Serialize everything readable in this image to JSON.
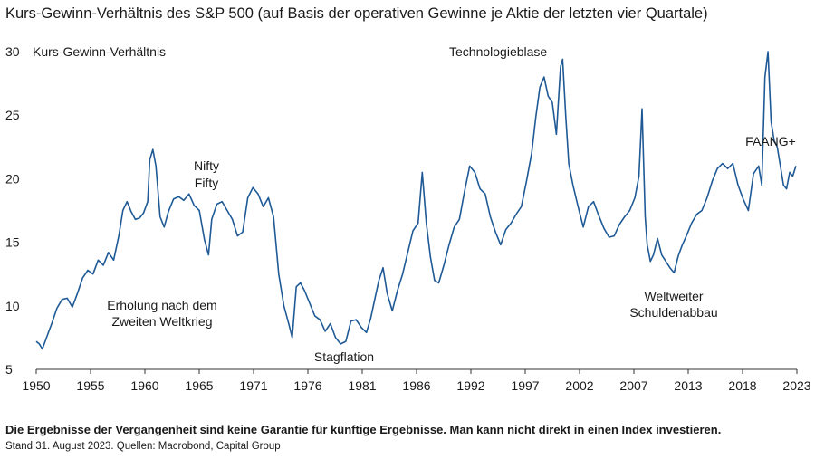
{
  "title": "Kurs-Gewinn-Verhältnis des S&P 500 (auf Basis der operativen Gewinne je Aktie der letzten vier Quartale)",
  "footnote": "Die Ergebnisse der Vergangenheit sind keine Garantie für künftige Ergebnisse. Man kann nicht direkt in einen Index investieren.",
  "source": "Stand 31. August 2023. Quellen: Macrobond, Capital Group",
  "colors": {
    "line": "#1f5a96",
    "axis": "#333333",
    "text": "#1a1a1a"
  },
  "chart_data": {
    "type": "line",
    "title": "Kurs-Gewinn-Verhältnis des S&P 500 (auf Basis der operativen Gewinne je Aktie der letzten vier Quartale)",
    "ylabel": "Kurs-Gewinn-Verhältnis",
    "xlabel": "",
    "ylim": [
      5,
      30
    ],
    "xlim": [
      1950,
      2023.7
    ],
    "yticks": [
      5,
      10,
      15,
      20,
      25,
      30
    ],
    "xtick_labels": [
      "1950",
      "1955",
      "1960",
      "1965",
      "1971",
      "1976",
      "1981",
      "1986",
      "1992",
      "1997",
      "2002",
      "2007",
      "2013",
      "2018",
      "2023"
    ],
    "grid": false,
    "legend": "none",
    "annotations": [
      {
        "text": "Technologieblase"
      },
      {
        "text": "Nifty"
      },
      {
        "text": "Fifty"
      },
      {
        "text": "FAANG+"
      },
      {
        "text": "Erholung nach dem"
      },
      {
        "text": "Zweiten Weltkrieg"
      },
      {
        "text": "Stagflation"
      },
      {
        "text": "Weltweiter"
      },
      {
        "text": "Schuldenabbau"
      }
    ],
    "series": [
      {
        "x": [
          1950.0,
          1950.3,
          1950.6,
          1951.0,
          1951.5,
          1952.0,
          1952.5,
          1953.0,
          1953.5,
          1954.0,
          1954.5,
          1955.0,
          1955.5,
          1956.0,
          1956.5,
          1957.0,
          1957.5,
          1958.0,
          1958.4,
          1958.8,
          1959.2,
          1959.6,
          1960.0,
          1960.4,
          1960.8,
          1961.0,
          1961.3,
          1961.6,
          1962.0,
          1962.4,
          1962.8,
          1963.3,
          1963.8,
          1964.3,
          1964.8,
          1965.3,
          1965.8,
          1966.3,
          1966.7,
          1967.0,
          1967.5,
          1968.0,
          1968.5,
          1969.0,
          1969.5,
          1970.0,
          1970.5,
          1971.0,
          1971.5,
          1972.0,
          1972.5,
          1973.0,
          1973.5,
          1974.0,
          1974.5,
          1974.8,
          1975.2,
          1975.6,
          1976.0,
          1976.5,
          1977.0,
          1977.5,
          1978.0,
          1978.5,
          1979.0,
          1979.5,
          1980.0,
          1980.5,
          1981.0,
          1981.5,
          1982.0,
          1982.4,
          1982.8,
          1983.2,
          1983.6,
          1984.0,
          1984.5,
          1985.0,
          1985.5,
          1986.0,
          1986.5,
          1987.0,
          1987.4,
          1987.8,
          1988.2,
          1988.6,
          1989.0,
          1989.5,
          1990.0,
          1990.5,
          1991.0,
          1991.5,
          1992.0,
          1992.5,
          1993.0,
          1993.5,
          1994.0,
          1994.5,
          1995.0,
          1995.5,
          1996.0,
          1996.5,
          1997.0,
          1997.5,
          1998.0,
          1998.4,
          1998.8,
          1999.2,
          1999.6,
          2000.0,
          2000.4,
          2000.8,
          2001.0,
          2001.3,
          2001.6,
          2002.0,
          2002.5,
          2003.0,
          2003.5,
          2004.0,
          2004.5,
          2005.0,
          2005.5,
          2006.0,
          2006.5,
          2007.0,
          2007.5,
          2008.0,
          2008.4,
          2008.7,
          2009.0,
          2009.2,
          2009.5,
          2009.8,
          2010.2,
          2010.6,
          2011.0,
          2011.4,
          2011.8,
          2012.2,
          2012.6,
          2013.0,
          2013.5,
          2014.0,
          2014.5,
          2015.0,
          2015.5,
          2016.0,
          2016.5,
          2017.0,
          2017.5,
          2018.0,
          2018.5,
          2019.0,
          2019.5,
          2020.0,
          2020.3,
          2020.6,
          2020.9,
          2021.2,
          2021.5,
          2021.8,
          2022.1,
          2022.4,
          2022.7,
          2023.0,
          2023.3,
          2023.6
        ],
        "values": [
          7.2,
          7.0,
          6.6,
          7.5,
          8.6,
          9.8,
          10.5,
          10.6,
          9.9,
          11.0,
          12.2,
          12.8,
          12.5,
          13.6,
          13.2,
          14.2,
          13.6,
          15.5,
          17.5,
          18.2,
          17.4,
          16.8,
          16.9,
          17.3,
          18.2,
          21.5,
          22.3,
          21.0,
          17.0,
          16.2,
          17.4,
          18.4,
          18.6,
          18.3,
          18.8,
          17.9,
          17.5,
          15.2,
          14.0,
          16.8,
          18.0,
          18.2,
          17.5,
          16.8,
          15.5,
          15.8,
          18.5,
          19.3,
          18.8,
          17.8,
          18.5,
          17.0,
          12.5,
          10.0,
          8.5,
          7.5,
          11.5,
          11.8,
          11.2,
          10.2,
          9.2,
          8.9,
          8.0,
          8.6,
          7.5,
          7.0,
          7.2,
          8.8,
          8.9,
          8.3,
          7.9,
          9.0,
          10.5,
          12.0,
          13.0,
          11.0,
          9.6,
          11.2,
          12.5,
          14.2,
          15.9,
          16.5,
          20.5,
          16.5,
          13.8,
          12.0,
          11.8,
          13.2,
          14.8,
          16.2,
          16.8,
          19.0,
          21.0,
          20.5,
          19.2,
          18.8,
          17.0,
          15.8,
          14.8,
          16.0,
          16.5,
          17.2,
          17.8,
          19.8,
          22.0,
          24.8,
          27.2,
          28.0,
          26.5,
          26.0,
          23.5,
          28.8,
          29.4,
          25.0,
          21.2,
          19.5,
          17.8,
          16.2,
          17.8,
          18.2,
          17.1,
          16.1,
          15.4,
          15.5,
          16.4,
          17.0,
          17.5,
          18.5,
          20.2,
          25.5,
          17.0,
          14.8,
          13.5,
          14.0,
          15.3,
          14.0,
          13.5,
          13.0,
          12.6,
          13.9,
          14.8,
          15.5,
          16.5,
          17.2,
          17.5,
          18.5,
          19.8,
          20.8,
          21.2,
          20.8,
          21.2,
          19.5,
          18.4,
          17.5,
          20.4,
          21.0,
          19.5,
          28.0,
          30.0,
          24.5,
          23.0,
          22.5,
          21.0,
          19.5,
          19.2,
          20.5,
          20.2,
          21.0
        ]
      }
    ]
  }
}
